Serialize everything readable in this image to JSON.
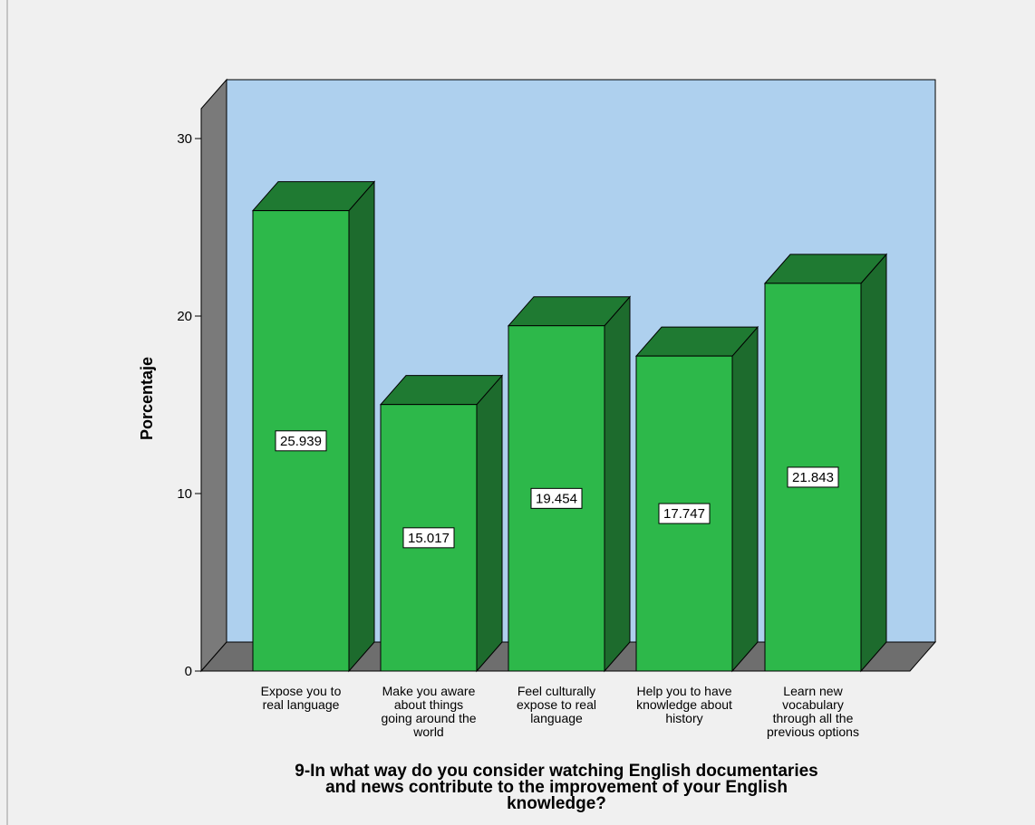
{
  "chart_data": {
    "type": "bar",
    "categories": [
      [
        "Expose you to",
        "real language"
      ],
      [
        "Make you aware",
        "about things",
        "going around the",
        "world"
      ],
      [
        "Feel culturally",
        "expose to real",
        "language"
      ],
      [
        "Help you to have",
        "knowledge about",
        "history"
      ],
      [
        "Learn new",
        "vocabulary",
        "through all the",
        "previous options"
      ]
    ],
    "values": [
      25.939,
      15.017,
      19.454,
      17.747,
      21.843
    ],
    "value_labels": [
      "25.939",
      "15.017",
      "19.454",
      "17.747",
      "21.843"
    ],
    "ylabel": "Porcentaje",
    "xlabel": [
      "9-In what way do you consider watching English documentaries",
      "and news contribute to the improvement of your English",
      "knowledge?"
    ],
    "yticks": [
      "0",
      "10",
      "20",
      "30"
    ],
    "ylim": [
      0,
      33
    ],
    "three_d": true,
    "grid": false,
    "legend": "none",
    "colors": {
      "bar_front": "#2db84a",
      "bar_top": "#1f7a32",
      "bar_side": "#1d6b2d",
      "back_wall": "#aed0ee",
      "side_wall": "#7a7a7a",
      "floor": "#6e6e6e",
      "frame_bg": "#f0f0f0",
      "edge": "#000000"
    }
  }
}
